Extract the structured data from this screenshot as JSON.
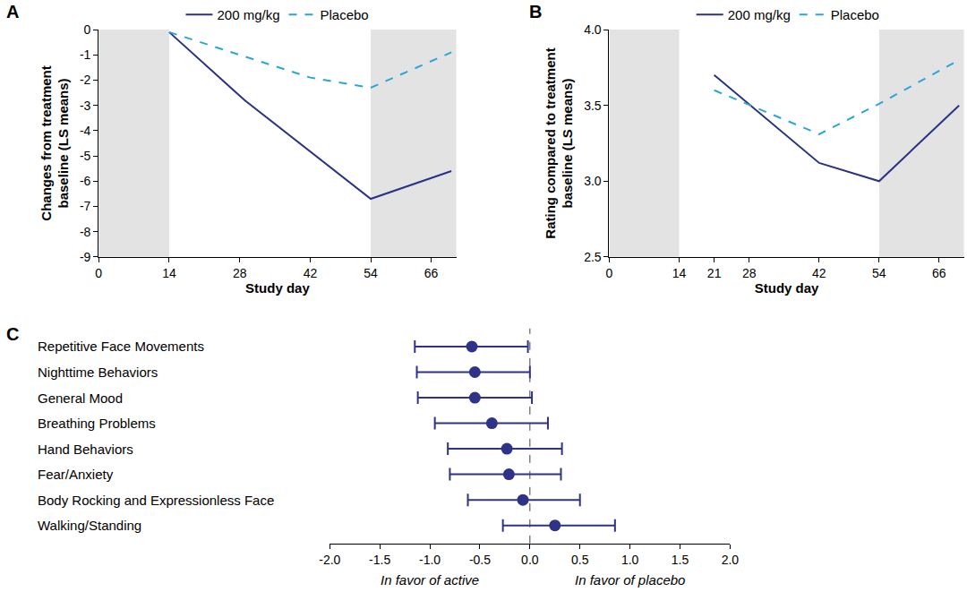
{
  "chart_data": [
    {
      "type": "line",
      "title": "A",
      "x_label": "Study day",
      "y_label": [
        "Changes from treatment",
        "baseline (LS means)"
      ],
      "legend": "top",
      "xlim": [
        0,
        71
      ],
      "xticks": [
        0,
        14,
        28,
        42,
        54,
        66
      ],
      "ylim": [
        -9,
        0
      ],
      "yticks": [
        0,
        -1,
        -2,
        -3,
        -4,
        -5,
        -6,
        -7,
        -8,
        -9
      ],
      "shaded_x": [
        [
          0,
          14
        ],
        [
          54,
          71
        ]
      ],
      "series": [
        {
          "name": "200 mg/kg",
          "color": "#2b3284",
          "line_style": "solid",
          "x": [
            14,
            29,
            54,
            70
          ],
          "values": [
            -0.1,
            -2.8,
            -6.7,
            -5.6
          ]
        },
        {
          "name": "Placebo",
          "color": "#2aa6d9",
          "line_style": "dashed",
          "x": [
            14,
            28,
            42,
            54,
            70
          ],
          "values": [
            -0.1,
            -1.0,
            -1.9,
            -2.3,
            -0.9
          ]
        }
      ]
    },
    {
      "type": "line",
      "title": "B",
      "x_label": "Study day",
      "y_label": [
        "Rating compared to treatment",
        "baseline (LS means)"
      ],
      "legend": "top",
      "xlim": [
        0,
        71
      ],
      "xticks": [
        0,
        14,
        21,
        28,
        42,
        54,
        66
      ],
      "ylim": [
        2.5,
        4.0
      ],
      "yticks": [
        2.5,
        {
          "value": 3.0,
          "label": "3.0"
        },
        3.5,
        {
          "value": 4.0,
          "label": "4.0"
        }
      ],
      "shaded_x": [
        [
          0,
          14
        ],
        [
          54,
          71
        ]
      ],
      "series": [
        {
          "name": "200 mg/kg",
          "color": "#2b3284",
          "line_style": "solid",
          "x": [
            21,
            42,
            54,
            70
          ],
          "values": [
            3.7,
            3.12,
            3.0,
            3.5
          ]
        },
        {
          "name": "Placebo",
          "color": "#2aa6d9",
          "line_style": "dashed",
          "x": [
            21,
            42,
            54,
            70
          ],
          "values": [
            3.6,
            3.31,
            3.51,
            3.8
          ]
        }
      ]
    },
    {
      "type": "forest",
      "title": "C",
      "xlim": [
        -2,
        2
      ],
      "xticks": [
        {
          "value": -2.0,
          "label": "-2.0"
        },
        -1.5,
        {
          "value": -1.0,
          "label": "-1.0"
        },
        -0.5,
        {
          "value": 0.0,
          "label": "0.0"
        },
        0.5,
        {
          "value": 1.0,
          "label": "1.0"
        },
        1.5,
        {
          "value": 2.0,
          "label": "2.0"
        }
      ],
      "categories": [
        "Repetitive Face Movements",
        "Nighttime Behaviors",
        "General Mood",
        "Breathing Problems",
        "Hand Behaviors",
        "Fear/Anxiety",
        "Body Rocking and Expressionless Face",
        "Walking/Standing"
      ],
      "values": [
        -0.58,
        -0.55,
        -0.55,
        -0.38,
        -0.23,
        -0.21,
        -0.07,
        0.25
      ],
      "ci_low": [
        -1.15,
        -1.13,
        -1.12,
        -0.95,
        -0.82,
        -0.8,
        -0.62,
        -0.27
      ],
      "ci_high": [
        -0.02,
        0.0,
        0.02,
        0.18,
        0.32,
        0.31,
        0.5,
        0.85
      ],
      "color": "#2e3388",
      "reference_x": 0,
      "annotations": [
        {
          "x": -1.0,
          "text": "In favor of active"
        },
        {
          "x": 1.0,
          "text": "In favor of placebo"
        }
      ]
    }
  ]
}
